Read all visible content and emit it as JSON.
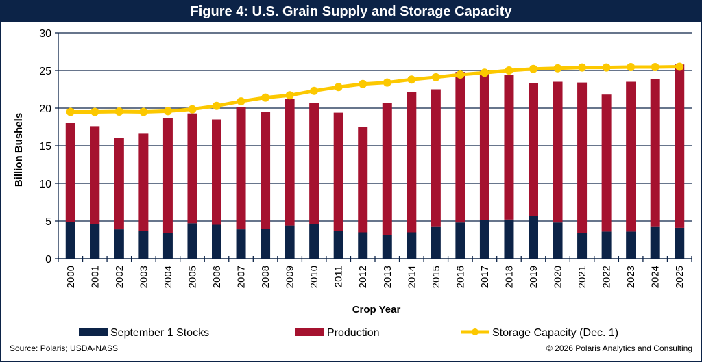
{
  "title": "Figure 4: U.S. Grain Supply and Storage Capacity",
  "footer": {
    "source": "Source: Polaris; USDA-NASS",
    "copyright": "© 2026 Polaris Analytics and Consulting"
  },
  "colors": {
    "stocks": "#0c2347",
    "production": "#a5122f",
    "storage": "#fcc800",
    "grid": "#0c2347"
  },
  "chart_data": {
    "type": "bar",
    "stacked": true,
    "title": "Figure 4: U.S. Grain Supply and Storage Capacity",
    "xlabel": "Crop Year",
    "ylabel": "Billion Bushels",
    "ylim": [
      0,
      30
    ],
    "yticks": [
      0,
      5,
      10,
      15,
      20,
      25,
      30
    ],
    "grid": true,
    "legend_position": "bottom",
    "categories": [
      "2000",
      "2001",
      "2002",
      "2003",
      "2004",
      "2005",
      "2006",
      "2007",
      "2008",
      "2009",
      "2010",
      "2011",
      "2012",
      "2013",
      "2014",
      "2015",
      "2016",
      "2017",
      "2018",
      "2019",
      "2020",
      "2021",
      "2022",
      "2023",
      "2024",
      "2025"
    ],
    "series": [
      {
        "name": "September 1 Stocks",
        "type": "bar",
        "values": [
          4.9,
          4.6,
          3.9,
          3.7,
          3.4,
          4.7,
          4.5,
          3.9,
          4.0,
          4.4,
          4.6,
          3.7,
          3.5,
          3.1,
          3.5,
          4.3,
          4.8,
          5.1,
          5.2,
          5.7,
          4.8,
          3.4,
          3.6,
          3.6,
          4.3,
          4.1
        ]
      },
      {
        "name": "Production",
        "type": "bar",
        "values": [
          13.1,
          13.0,
          12.1,
          12.9,
          15.3,
          14.6,
          14.0,
          16.2,
          15.5,
          16.8,
          16.1,
          15.7,
          14.0,
          17.6,
          18.6,
          18.2,
          20.0,
          19.8,
          19.2,
          17.6,
          18.7,
          20.0,
          18.2,
          19.9,
          19.6,
          21.7
        ]
      },
      {
        "name": "Storage Capacity (Dec. 1)",
        "type": "line",
        "values": [
          19.5,
          19.5,
          19.55,
          19.5,
          19.6,
          19.85,
          20.3,
          20.9,
          21.4,
          21.7,
          22.3,
          22.8,
          23.2,
          23.4,
          23.8,
          24.1,
          24.45,
          24.7,
          25.0,
          25.2,
          25.3,
          25.4,
          25.4,
          25.45,
          25.45,
          25.5
        ]
      }
    ]
  }
}
